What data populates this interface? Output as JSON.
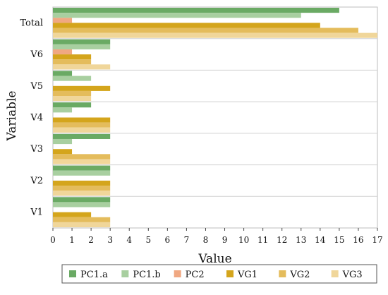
{
  "chart_data": {
    "type": "bar",
    "orientation": "horizontal",
    "title": "",
    "xlabel": "Value",
    "ylabel": "Variable",
    "xlim": [
      0,
      17
    ],
    "x_ticks": [
      "0",
      "1",
      "2",
      "3",
      "4",
      "5",
      "6",
      "7",
      "8",
      "9",
      "10",
      "11",
      "12",
      "13",
      "14",
      "15",
      "16",
      "17"
    ],
    "grid": "horizontal separators between categories",
    "legend_position": "bottom",
    "categories": [
      "Total",
      "V6",
      "V5",
      "V4",
      "V3",
      "V2",
      "V1"
    ],
    "series": [
      {
        "name": "PC1.a",
        "color": "#6aaa64",
        "values": [
          15,
          3,
          1,
          2,
          3,
          3,
          3
        ]
      },
      {
        "name": "PC1.b",
        "color": "#a8cfa0",
        "values": [
          13,
          3,
          2,
          1,
          1,
          3,
          3
        ]
      },
      {
        "name": "PC2",
        "color": "#f0a882",
        "values": [
          1,
          1,
          0,
          0,
          0,
          0,
          0
        ]
      },
      {
        "name": "VG1",
        "color": "#d4a51c",
        "values": [
          14,
          2,
          3,
          3,
          1,
          3,
          2
        ]
      },
      {
        "name": "VG2",
        "color": "#e4bc5c",
        "values": [
          16,
          2,
          2,
          3,
          3,
          3,
          3
        ]
      },
      {
        "name": "VG3",
        "color": "#f0d69a",
        "values": [
          17,
          3,
          2,
          3,
          3,
          3,
          3
        ]
      }
    ]
  }
}
